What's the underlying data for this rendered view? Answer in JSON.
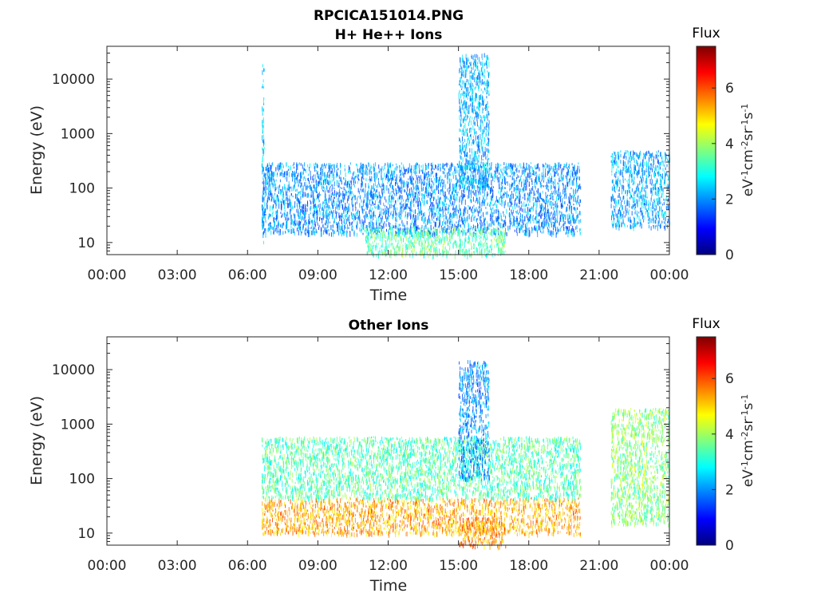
{
  "figure": {
    "title_line1": "RPCICA151014.PNG"
  },
  "panels": [
    {
      "title": "H+ He++ Ions",
      "xlabel": "Time",
      "ylabel": "Energy (eV)",
      "colorbar_title": "Flux",
      "colorbar_units": "eV-1cm-2sr-1s-1"
    },
    {
      "title": "Other Ions",
      "xlabel": "Time",
      "ylabel": "Energy (eV)",
      "colorbar_title": "Flux",
      "colorbar_units": "eV-1cm-2sr-1s-1"
    }
  ],
  "colors": {
    "colormap": [
      "#00007f",
      "#0000ff",
      "#007fff",
      "#00ffff",
      "#7fff7f",
      "#ffff00",
      "#ff7f00",
      "#ff0000",
      "#7f0000"
    ],
    "axis": "#262626"
  },
  "chart_data": [
    {
      "type": "heatmap",
      "title": "H+ He++ Ions",
      "xlabel": "Time",
      "ylabel": "Energy (eV)",
      "x_ticks": [
        "00:00",
        "03:00",
        "06:00",
        "09:00",
        "12:00",
        "15:00",
        "18:00",
        "21:00",
        "00:00"
      ],
      "xlim_hours": [
        0,
        24
      ],
      "y_scale": "log",
      "y_ticks": [
        10,
        100,
        1000,
        10000
      ],
      "y_tick_labels": [
        "10",
        "100",
        "1000",
        "10000"
      ],
      "ylim": [
        6,
        40000
      ],
      "colorbar": {
        "label": "Flux",
        "units": "eV-1cm-2sr-1s-1",
        "range": [
          0,
          7.5
        ],
        "ticks": [
          0,
          2,
          4,
          6
        ],
        "tick_labels": [
          "0",
          "2",
          "4",
          "6"
        ]
      },
      "data_coverage_hours": [
        [
          6.6,
          20.2
        ],
        [
          21.5,
          24.0
        ]
      ],
      "features": [
        {
          "time_hours": [
            6.6,
            6.7
          ],
          "energy_eV": [
            10,
            20000
          ],
          "flux": 2.5
        },
        {
          "time_hours": [
            6.6,
            20.2
          ],
          "energy_eV": [
            15,
            300
          ],
          "flux": 2.0
        },
        {
          "time_hours": [
            15.0,
            16.3
          ],
          "energy_eV": [
            100,
            30000
          ],
          "flux": 2.3
        },
        {
          "time_hours": [
            11.0,
            17.0
          ],
          "energy_eV": [
            6,
            20
          ],
          "flux": 3.5
        },
        {
          "time_hours": [
            21.5,
            24.0
          ],
          "energy_eV": [
            20,
            500
          ],
          "flux": 2.2
        }
      ],
      "grid": false
    },
    {
      "type": "heatmap",
      "title": "Other Ions",
      "xlabel": "Time",
      "ylabel": "Energy (eV)",
      "x_ticks": [
        "00:00",
        "03:00",
        "06:00",
        "09:00",
        "12:00",
        "15:00",
        "18:00",
        "21:00",
        "00:00"
      ],
      "xlim_hours": [
        0,
        24
      ],
      "y_scale": "log",
      "y_ticks": [
        10,
        100,
        1000,
        10000
      ],
      "y_tick_labels": [
        "10",
        "100",
        "1000",
        "10000"
      ],
      "ylim": [
        6,
        40000
      ],
      "colorbar": {
        "label": "Flux",
        "units": "eV-1cm-2sr-1s-1",
        "range": [
          0,
          7.5
        ],
        "ticks": [
          0,
          2,
          4,
          6
        ],
        "tick_labels": [
          "0",
          "2",
          "4",
          "6"
        ]
      },
      "data_coverage_hours": [
        [
          6.6,
          20.2
        ],
        [
          21.5,
          24.0
        ]
      ],
      "features": [
        {
          "time_hours": [
            6.6,
            20.2
          ],
          "energy_eV": [
            10,
            45
          ],
          "flux": 5.3
        },
        {
          "time_hours": [
            6.6,
            20.2
          ],
          "energy_eV": [
            45,
            600
          ],
          "flux": 3.4
        },
        {
          "time_hours": [
            15.0,
            16.3
          ],
          "energy_eV": [
            100,
            15000
          ],
          "flux": 2.0
        },
        {
          "time_hours": [
            15.0,
            17.0
          ],
          "energy_eV": [
            6,
            20
          ],
          "flux": 5.5
        },
        {
          "time_hours": [
            21.5,
            24.0
          ],
          "energy_eV": [
            15,
            2000
          ],
          "flux": 3.8
        }
      ],
      "grid": false
    }
  ]
}
